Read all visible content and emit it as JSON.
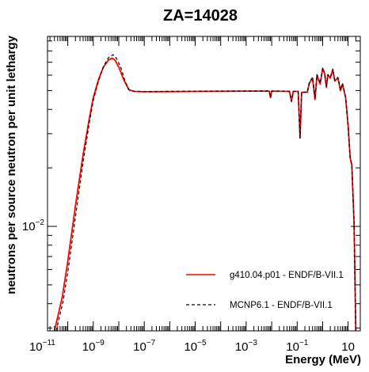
{
  "chart_data": {
    "type": "line",
    "title": "ZA=14028",
    "xlabel": "Energy (MeV)",
    "ylabel": "neutrons per source neutron per unit lethargy",
    "x_scale": "log",
    "y_scale": "log",
    "xlim": [
      1.6e-11,
      30
    ],
    "ylim": [
      0.0029,
      0.095
    ],
    "grid": false,
    "legend_position": "bottom-right",
    "x_ticks": [
      {
        "base": "10",
        "exp": "−11",
        "value": 1e-11
      },
      {
        "base": "10",
        "exp": "−9",
        "value": 1e-09
      },
      {
        "base": "10",
        "exp": "−7",
        "value": 1e-07
      },
      {
        "base": "10",
        "exp": "−5",
        "value": 1e-05
      },
      {
        "base": "10",
        "exp": "−3",
        "value": 0.001
      },
      {
        "base": "10",
        "exp": "−1",
        "value": 0.1
      },
      {
        "base": "10",
        "exp": "",
        "value": 10
      }
    ],
    "y_ticks": [
      {
        "base": "10",
        "exp": "−2",
        "value": 0.01
      }
    ],
    "series": [
      {
        "name": "g410.04.p01 - ENDF/B-VII.1",
        "color": "#ff0000",
        "style": "solid",
        "points": [
          [
            3e-11,
            0.0029
          ],
          [
            6e-11,
            0.0043
          ],
          [
            1e-10,
            0.0066
          ],
          [
            2e-10,
            0.0128
          ],
          [
            4e-10,
            0.0235
          ],
          [
            7e-10,
            0.036
          ],
          [
            1e-09,
            0.046
          ],
          [
            1.6e-09,
            0.057
          ],
          [
            2.5e-09,
            0.066
          ],
          [
            4e-09,
            0.072
          ],
          [
            5.5e-09,
            0.0735
          ],
          [
            7e-09,
            0.072
          ],
          [
            1e-08,
            0.066
          ],
          [
            1.6e-08,
            0.0565
          ],
          [
            2.5e-08,
            0.0505
          ],
          [
            4e-08,
            0.0495
          ],
          [
            1e-07,
            0.0493
          ],
          [
            1e-06,
            0.0494
          ],
          [
            1e-05,
            0.0495
          ],
          [
            0.0001,
            0.0496
          ],
          [
            0.001,
            0.0497
          ],
          [
            0.008,
            0.0497
          ],
          [
            0.009,
            0.046
          ],
          [
            0.01,
            0.0497
          ],
          [
            0.05,
            0.0495
          ],
          [
            0.06,
            0.044
          ],
          [
            0.07,
            0.0495
          ],
          [
            0.11,
            0.0495
          ],
          [
            0.13,
            0.0285
          ],
          [
            0.15,
            0.049
          ],
          [
            0.25,
            0.049
          ],
          [
            0.3,
            0.0545
          ],
          [
            0.4,
            0.058
          ],
          [
            0.5,
            0.045
          ],
          [
            0.6,
            0.06
          ],
          [
            0.8,
            0.054
          ],
          [
            1.0,
            0.065
          ],
          [
            1.2,
            0.061
          ],
          [
            1.4,
            0.052
          ],
          [
            1.6,
            0.06
          ],
          [
            2.0,
            0.058
          ],
          [
            2.5,
            0.064
          ],
          [
            3.0,
            0.056
          ],
          [
            4.0,
            0.058
          ],
          [
            5.0,
            0.05
          ],
          [
            6.0,
            0.054
          ],
          [
            8.0,
            0.046
          ],
          [
            10.0,
            0.033
          ],
          [
            12.0,
            0.0225
          ],
          [
            14.0,
            0.0207
          ],
          [
            17.0,
            0.0105
          ],
          [
            20.0,
            0.0029
          ]
        ]
      },
      {
        "name": "MCNP6.1 - ENDF/B-VII.1",
        "color": "#000000",
        "style": "dashed",
        "points": [
          [
            3.5e-11,
            0.0029
          ],
          [
            6.5e-11,
            0.0041
          ],
          [
            1e-10,
            0.0058
          ],
          [
            2e-10,
            0.0112
          ],
          [
            4e-10,
            0.0215
          ],
          [
            7e-10,
            0.034
          ],
          [
            1e-09,
            0.0445
          ],
          [
            1.6e-09,
            0.056
          ],
          [
            2.5e-09,
            0.0665
          ],
          [
            4e-09,
            0.074
          ],
          [
            6e-09,
            0.0765
          ],
          [
            8e-09,
            0.0735
          ],
          [
            1.2e-08,
            0.066
          ],
          [
            1.8e-08,
            0.0555
          ],
          [
            2.5e-08,
            0.0505
          ],
          [
            4e-08,
            0.0496
          ],
          [
            1e-07,
            0.0494
          ],
          [
            1e-06,
            0.0495
          ],
          [
            1e-05,
            0.0496
          ],
          [
            0.0001,
            0.0497
          ],
          [
            0.001,
            0.0498
          ],
          [
            0.008,
            0.0498
          ],
          [
            0.009,
            0.046
          ],
          [
            0.01,
            0.0498
          ],
          [
            0.05,
            0.0496
          ],
          [
            0.06,
            0.044
          ],
          [
            0.07,
            0.0496
          ],
          [
            0.11,
            0.0496
          ],
          [
            0.13,
            0.0285
          ],
          [
            0.15,
            0.0491
          ],
          [
            0.25,
            0.0491
          ],
          [
            0.3,
            0.055
          ],
          [
            0.4,
            0.0585
          ],
          [
            0.5,
            0.0452
          ],
          [
            0.6,
            0.0605
          ],
          [
            0.8,
            0.0545
          ],
          [
            1.0,
            0.0655
          ],
          [
            1.2,
            0.0615
          ],
          [
            1.4,
            0.0525
          ],
          [
            1.6,
            0.0605
          ],
          [
            2.0,
            0.0585
          ],
          [
            2.5,
            0.0645
          ],
          [
            3.0,
            0.0565
          ],
          [
            4.0,
            0.0585
          ],
          [
            5.0,
            0.0502
          ],
          [
            6.0,
            0.0545
          ],
          [
            8.0,
            0.0462
          ],
          [
            10.0,
            0.0332
          ],
          [
            12.0,
            0.0227
          ],
          [
            14.0,
            0.0208
          ],
          [
            17.0,
            0.0106
          ],
          [
            20.0,
            0.0029
          ]
        ]
      }
    ]
  }
}
